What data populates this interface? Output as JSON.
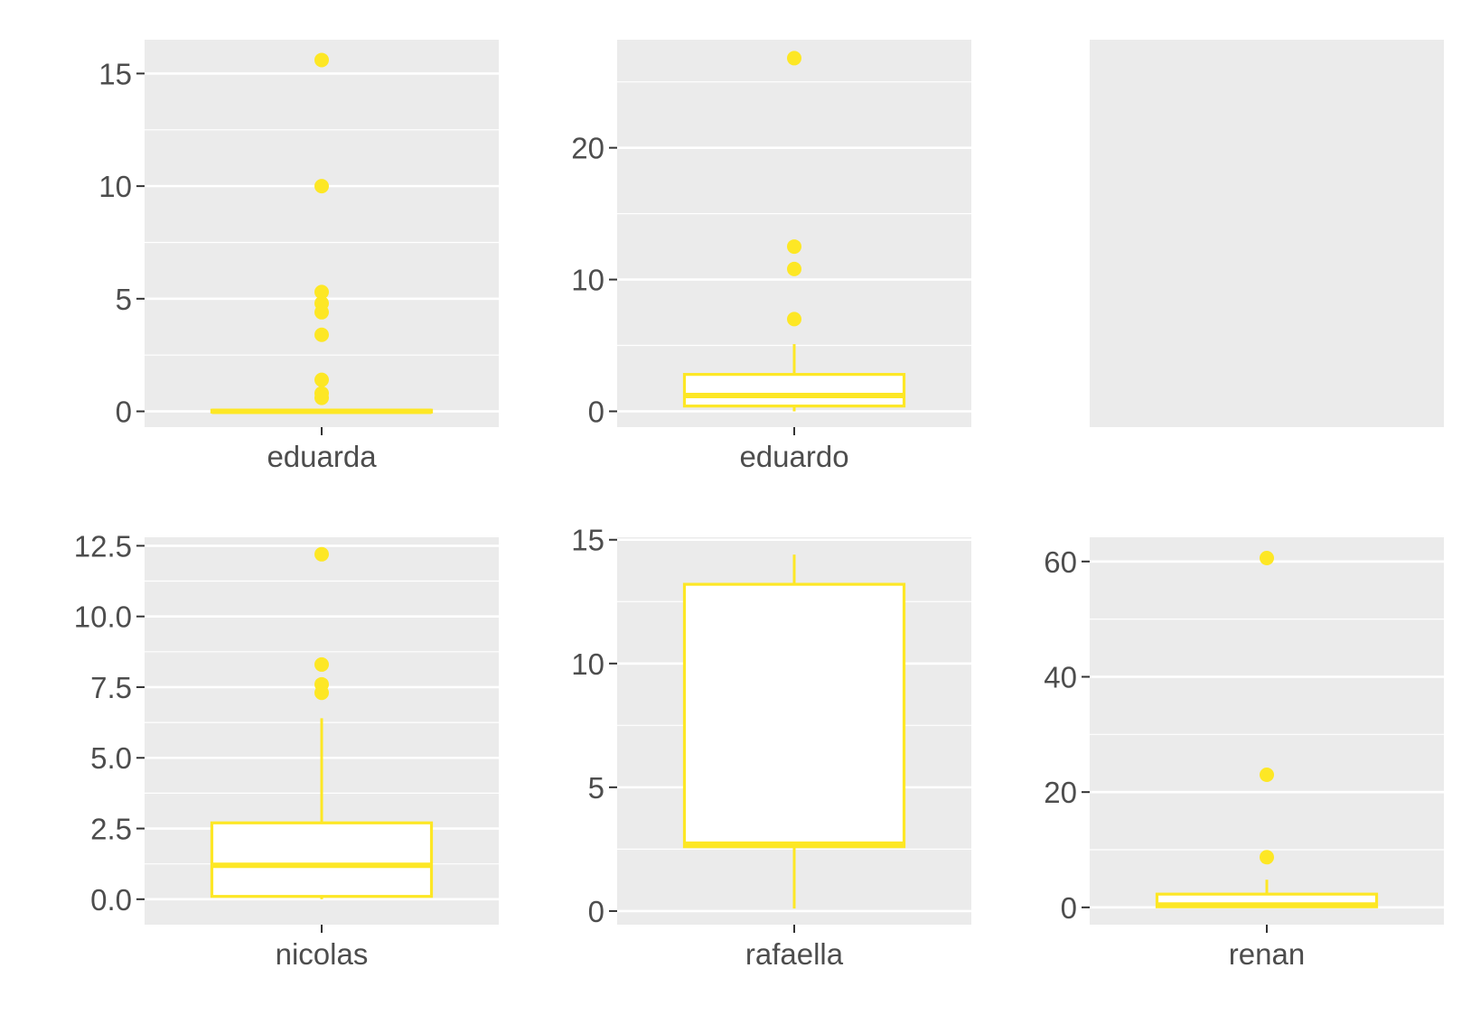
{
  "chart_data": {
    "type": "boxplot",
    "color": "#FDE725",
    "panel_background": "#EBEBEB",
    "grid": true,
    "layout": "2 rows x 3 columns, free y scales",
    "panels": [
      {
        "category": "eduarda",
        "ylim": [
          -0.7,
          16.5
        ],
        "yticks": [
          0,
          5,
          10,
          15
        ],
        "ytick_labels": [
          "0",
          "5",
          "10",
          "15"
        ],
        "box": {
          "whisker_low": 0,
          "q1": 0,
          "median": 0,
          "q3": 0.05,
          "whisker_high": 0.1
        },
        "outliers": [
          15.6,
          10.0,
          5.3,
          4.8,
          4.4,
          3.4,
          1.4,
          0.8,
          0.6
        ]
      },
      {
        "category": "eduardo",
        "ylim": [
          -1.2,
          28.2
        ],
        "yticks": [
          0,
          10,
          20
        ],
        "ytick_labels": [
          "0",
          "10",
          "20"
        ],
        "box": {
          "whisker_low": 0,
          "q1": 0.4,
          "median": 1.2,
          "q3": 2.8,
          "whisker_high": 5.1
        },
        "outliers": [
          26.8,
          12.5,
          10.8,
          7.0
        ]
      },
      {
        "category": "",
        "empty": true
      },
      {
        "category": "nicolas",
        "ylim": [
          -0.9,
          12.8
        ],
        "yticks": [
          0,
          2.5,
          5,
          7.5,
          10,
          12.5
        ],
        "ytick_labels": [
          "0.0",
          "2.5",
          "5.0",
          "7.5",
          "10.0",
          "12.5"
        ],
        "box": {
          "whisker_low": 0,
          "q1": 0.1,
          "median": 1.2,
          "q3": 2.7,
          "whisker_high": 6.4
        },
        "outliers": [
          12.2,
          8.3,
          7.6,
          7.3
        ]
      },
      {
        "category": "rafaella",
        "ylim": [
          -0.55,
          15.1
        ],
        "yticks": [
          0,
          5,
          10,
          15
        ],
        "ytick_labels": [
          "0",
          "5",
          "10",
          "15"
        ],
        "box": {
          "whisker_low": 0.1,
          "q1": 2.6,
          "median": 2.7,
          "q3": 13.2,
          "whisker_high": 14.4
        },
        "outliers": []
      },
      {
        "category": "renan",
        "ylim": [
          -3.0,
          64.2
        ],
        "yticks": [
          0,
          20,
          40,
          60
        ],
        "ytick_labels": [
          "0",
          "20",
          "40",
          "60"
        ],
        "box": {
          "whisker_low": 0,
          "q1": 0.1,
          "median": 0.4,
          "q3": 2.3,
          "whisker_high": 4.8
        },
        "outliers": [
          60.6,
          23.0,
          8.7
        ]
      }
    ]
  }
}
